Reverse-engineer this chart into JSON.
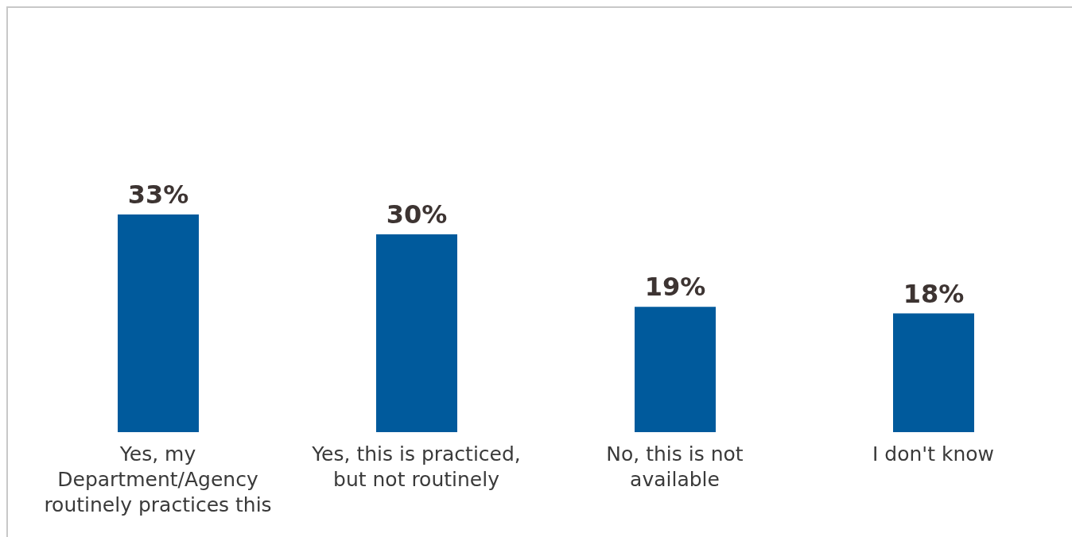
{
  "chart_data": {
    "type": "bar",
    "categories": [
      "Yes, my Department/Agency routinely practices this",
      "Yes, this is practiced, but not routinely",
      "No, this is not available",
      "I don't know"
    ],
    "values": [
      33,
      30,
      19,
      18
    ],
    "value_labels": [
      "33%",
      "30%",
      "19%",
      "18%"
    ],
    "color": "#005a9c"
  }
}
